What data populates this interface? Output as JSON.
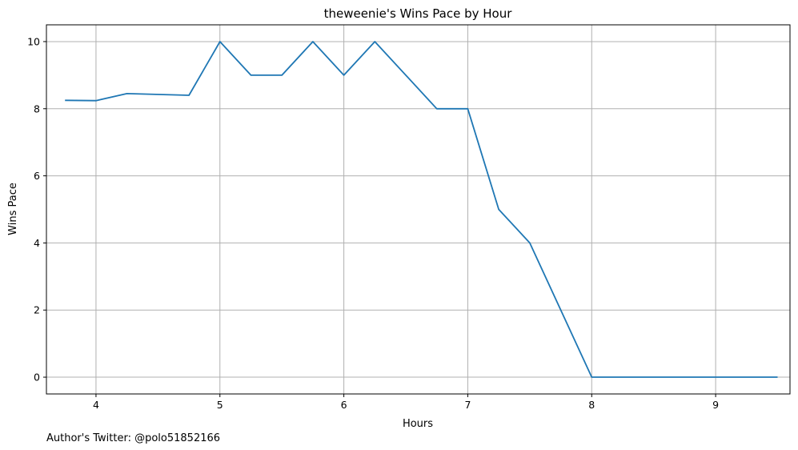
{
  "chart_data": {
    "type": "line",
    "title": "theweenie's Wins Pace by Hour",
    "xlabel": "Hours",
    "ylabel": "Wins Pace",
    "xlim": [
      3.6,
      9.6
    ],
    "ylim": [
      -0.5,
      10.5
    ],
    "xticks": [
      4,
      5,
      6,
      7,
      8,
      9
    ],
    "yticks": [
      0,
      2,
      4,
      6,
      8,
      10
    ],
    "grid": true,
    "series": [
      {
        "color": "#1f77b4",
        "x": [
          3.75,
          4.0,
          4.25,
          4.75,
          5.0,
          5.25,
          5.5,
          5.75,
          6.0,
          6.25,
          6.75,
          7.0,
          7.25,
          7.5,
          8.0,
          8.25,
          8.5,
          8.75,
          9.0,
          9.25,
          9.5
        ],
        "y": [
          8.25,
          8.24,
          8.45,
          8.4,
          10,
          9,
          9,
          10,
          9,
          10,
          8,
          8,
          5,
          4,
          0,
          0,
          0,
          0,
          0,
          0,
          0
        ]
      }
    ]
  },
  "footnote": "Author's Twitter: @polo51852166"
}
